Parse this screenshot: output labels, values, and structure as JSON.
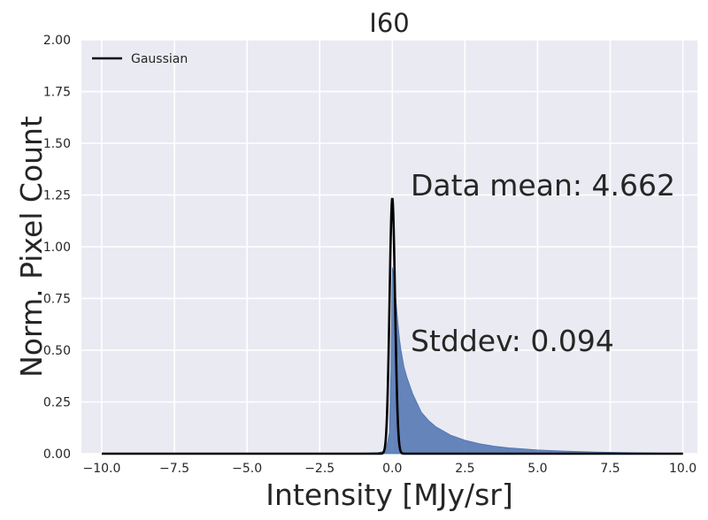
{
  "chart_data": {
    "type": "histogram",
    "title": "I60",
    "xlabel": "Intensity [MJy/sr]",
    "ylabel": "Norm. Pixel Count",
    "xlim": [
      -10.7,
      10.5
    ],
    "ylim": [
      0,
      2.0
    ],
    "x_ticks": [
      -10.0,
      -7.5,
      -5.0,
      -2.5,
      0.0,
      2.5,
      5.0,
      7.5,
      10.0
    ],
    "x_tick_labels": [
      "−10.0",
      "−7.5",
      "−5.0",
      "−2.5",
      "0.0",
      "2.5",
      "5.0",
      "7.5",
      "10.0"
    ],
    "y_ticks": [
      0.0,
      0.25,
      0.5,
      0.75,
      1.0,
      1.25,
      1.5,
      1.75,
      2.0
    ],
    "y_tick_labels": [
      "0.00",
      "0.25",
      "0.50",
      "0.75",
      "1.00",
      "1.25",
      "1.50",
      "1.75",
      "2.00"
    ],
    "grid": true,
    "legend_position": "upper-left",
    "legend_entries": [
      "Gaussian"
    ],
    "histogram": {
      "color": "#4c72b0",
      "x": [
        -10.0,
        -2.0,
        -1.0,
        -0.5,
        -0.3,
        -0.2,
        -0.1,
        -0.05,
        0.0,
        0.05,
        0.1,
        0.15,
        0.2,
        0.25,
        0.3,
        0.35,
        0.4,
        0.5,
        0.6,
        0.7,
        0.8,
        0.9,
        1.0,
        1.25,
        1.5,
        1.75,
        2.0,
        2.5,
        3.0,
        3.5,
        4.0,
        5.0,
        6.0,
        7.0,
        8.0,
        9.0,
        10.0
      ],
      "y": [
        0.0,
        0.0,
        0.002,
        0.005,
        0.01,
        0.03,
        0.1,
        0.4,
        0.9,
        0.86,
        0.78,
        0.7,
        0.62,
        0.55,
        0.5,
        0.46,
        0.42,
        0.37,
        0.33,
        0.29,
        0.26,
        0.23,
        0.2,
        0.16,
        0.13,
        0.11,
        0.09,
        0.065,
        0.048,
        0.036,
        0.028,
        0.018,
        0.012,
        0.008,
        0.005,
        0.003,
        0.002
      ]
    },
    "gaussian": {
      "name": "Gaussian",
      "color": "#000000",
      "peak": 1.235,
      "center": 0.0,
      "sigma": 0.094
    },
    "annotations": {
      "mean": "Data mean: 4.662",
      "stddev": "Stddev: 0.094"
    }
  }
}
